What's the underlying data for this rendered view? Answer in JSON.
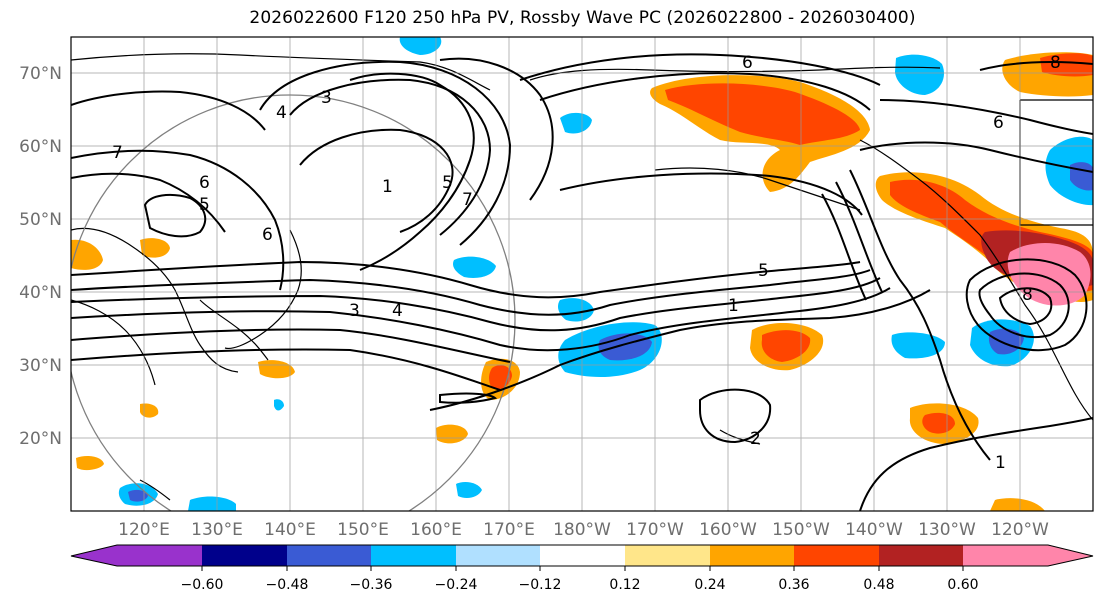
{
  "title": "2026022600 F120 250 hPa PV, Rossby Wave PC (2026022800 - 2026030400)",
  "lat_labels": [
    "70°N",
    "60°N",
    "50°N",
    "40°N",
    "30°N",
    "20°N"
  ],
  "lon_labels": [
    "120°E",
    "130°E",
    "140°E",
    "150°E",
    "160°E",
    "170°E",
    "180°W",
    "170°W",
    "160°W",
    "150°W",
    "140°W",
    "130°W",
    "120°W"
  ],
  "contour_labels": [
    "1",
    "2",
    "3",
    "4",
    "5",
    "6",
    "7",
    "8"
  ],
  "colorbar": {
    "ticks": [
      "−0.60",
      "−0.48",
      "−0.36",
      "−0.24",
      "−0.12",
      "0.12",
      "0.24",
      "0.36",
      "0.48",
      "0.60"
    ],
    "colors": [
      "#9932CC",
      "#00008B",
      "#3A5BD4",
      "#00BFFF",
      "#B0E0FF",
      "#FFFFFF",
      "#FFE68A",
      "#FFA500",
      "#FF4500",
      "#B22222",
      "#FF85AA"
    ]
  }
}
